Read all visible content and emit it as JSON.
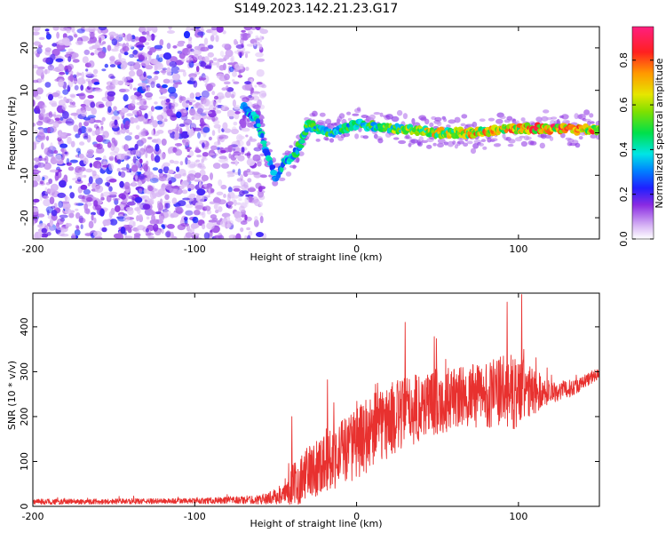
{
  "title": "S149.2023.142.21.23.G17",
  "chart_data": [
    {
      "type": "heatmap",
      "name": "spectrogram",
      "xlabel": "Height of straight line (km)",
      "ylabel": "Frequency (Hz)",
      "xlim": [
        -200,
        150
      ],
      "ylim": [
        -25,
        25
      ],
      "xticks": [
        -200,
        -100,
        0,
        100
      ],
      "xtick_labels": [
        "-200",
        "-100",
        "0",
        "100"
      ],
      "yticks": [
        -20,
        -10,
        0,
        10,
        20
      ],
      "ytick_labels": [
        "-20",
        "-10",
        "0",
        "10",
        "20"
      ],
      "colorbar": {
        "label": "Normalized spectral amplitude",
        "range": [
          0,
          0.95
        ],
        "ticks": [
          0.0,
          0.2,
          0.4,
          0.6,
          0.8
        ],
        "tick_labels": [
          "0.0",
          "0.2",
          "0.4",
          "0.6",
          "0.8"
        ]
      },
      "ridge": {
        "x": [
          -70,
          -62,
          -55,
          -50,
          -45,
          -40,
          -35,
          -30,
          -25,
          -15,
          0,
          25,
          50,
          75,
          100,
          125,
          150
        ],
        "y": [
          6,
          3,
          -5,
          -11,
          -7,
          -6,
          -3,
          2,
          1,
          0,
          2,
          1,
          0,
          0,
          1,
          1,
          0.5
        ],
        "peak_amplitude": [
          0.35,
          0.4,
          0.4,
          0.35,
          0.45,
          0.45,
          0.5,
          0.55,
          0.5,
          0.5,
          0.5,
          0.6,
          0.7,
          0.75,
          0.8,
          0.85,
          0.8
        ]
      },
      "noise_region": {
        "x": [
          -200,
          -65
        ],
        "amplitude": [
          0.05,
          0.25
        ]
      }
    },
    {
      "type": "line",
      "name": "snr",
      "xlabel": "Height of straight line (km)",
      "ylabel": "SNR (10 * v/v)",
      "xlim": [
        -200,
        150
      ],
      "ylim": [
        0,
        475
      ],
      "xticks": [
        -200,
        -100,
        0,
        100
      ],
      "xtick_labels": [
        "-200",
        "-100",
        "0",
        "100"
      ],
      "yticks": [
        0,
        100,
        200,
        300,
        400
      ],
      "ytick_labels": [
        "0",
        "100",
        "200",
        "300",
        "400"
      ],
      "color": "#e8312f",
      "envelope": {
        "x": [
          -200,
          -100,
          -60,
          -45,
          -40,
          -35,
          -30,
          -20,
          -10,
          0,
          10,
          20,
          30,
          40,
          50,
          60,
          70,
          80,
          90,
          100,
          110,
          120,
          130,
          140,
          150
        ],
        "mean": [
          10,
          12,
          15,
          25,
          45,
          60,
          75,
          100,
          120,
          140,
          170,
          190,
          210,
          225,
          235,
          240,
          245,
          250,
          255,
          255,
          255,
          255,
          260,
          275,
          300
        ],
        "spread": [
          6,
          6,
          10,
          20,
          45,
          55,
          60,
          70,
          75,
          80,
          85,
          85,
          80,
          80,
          75,
          70,
          70,
          75,
          80,
          85,
          50,
          25,
          20,
          15,
          15
        ]
      },
      "peaks": [
        {
          "x": -40,
          "y": 200
        },
        {
          "x": -18,
          "y": 282
        },
        {
          "x": 30,
          "y": 410
        },
        {
          "x": 48,
          "y": 378
        },
        {
          "x": 93,
          "y": 455
        },
        {
          "x": 102,
          "y": 472
        }
      ]
    }
  ]
}
